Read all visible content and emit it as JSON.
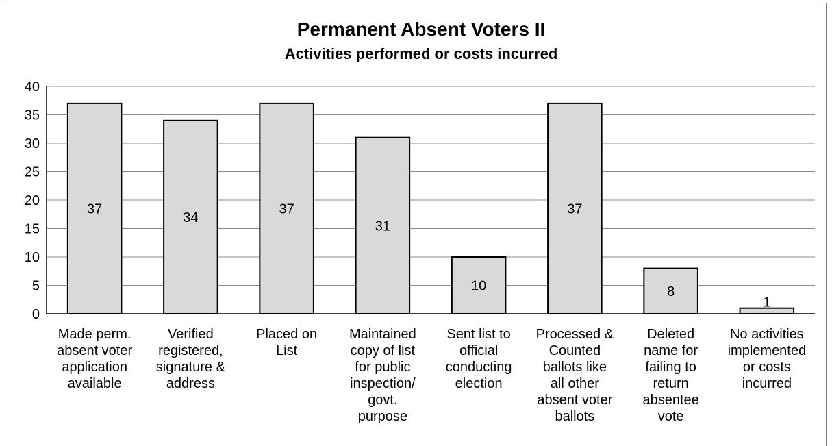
{
  "chart_data": {
    "type": "bar",
    "title": "Permanent Absent Voters II",
    "subtitle": "Activities  performed  or costs incurred",
    "categories": [
      [
        "Made perm.",
        "absent voter",
        "application",
        "available"
      ],
      [
        "Verified",
        "registered,",
        "signature &",
        "address"
      ],
      [
        "Placed on",
        "List"
      ],
      [
        "Maintained",
        "copy of list",
        "for public",
        "inspection/",
        "govt.",
        "purpose"
      ],
      [
        "Sent list to",
        "official",
        "conducting",
        "election"
      ],
      [
        "Processed &",
        "Counted",
        "ballots like",
        "all other",
        "absent voter",
        "ballots"
      ],
      [
        "Deleted",
        "name for",
        "failing to",
        "return",
        "absentee",
        "vote"
      ],
      [
        "No activities",
        "implemented",
        "or costs",
        "incurred"
      ]
    ],
    "values": [
      37,
      34,
      37,
      31,
      10,
      37,
      8,
      1
    ],
    "data_labels": [
      "37",
      "34",
      "37",
      "31",
      "10",
      "37",
      "8",
      "1"
    ],
    "ylim": [
      0,
      40
    ],
    "yticks": [
      "0",
      "5",
      "10",
      "15",
      "20",
      "25",
      "30",
      "35",
      "40"
    ],
    "grid": true,
    "colors": {
      "bar_fill": "#d9d9d9",
      "bar_stroke": "#000000",
      "grid": "#8c8c8c"
    }
  }
}
